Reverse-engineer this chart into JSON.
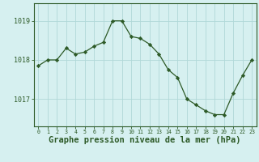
{
  "x": [
    0,
    1,
    2,
    3,
    4,
    5,
    6,
    7,
    8,
    9,
    10,
    11,
    12,
    13,
    14,
    15,
    16,
    17,
    18,
    19,
    20,
    21,
    22,
    23
  ],
  "y": [
    1017.85,
    1018.0,
    1018.0,
    1018.3,
    1018.15,
    1018.2,
    1018.35,
    1018.45,
    1019.0,
    1019.0,
    1018.6,
    1018.55,
    1018.4,
    1018.15,
    1017.75,
    1017.55,
    1017.0,
    1016.85,
    1016.7,
    1016.6,
    1016.6,
    1017.15,
    1017.6,
    1018.0
  ],
  "line_color": "#2d5a27",
  "marker": "D",
  "marker_size": 2.2,
  "bg_color": "#d6f0f0",
  "grid_color": "#b0d8d8",
  "xlabel": "Graphe pression niveau de la mer (hPa)",
  "xlabel_fontsize": 7.5,
  "yticks": [
    1017,
    1018,
    1019
  ],
  "ylim": [
    1016.3,
    1019.45
  ],
  "xlim": [
    -0.5,
    23.5
  ],
  "tick_color": "#2d5a27",
  "label_color": "#2d5a27"
}
